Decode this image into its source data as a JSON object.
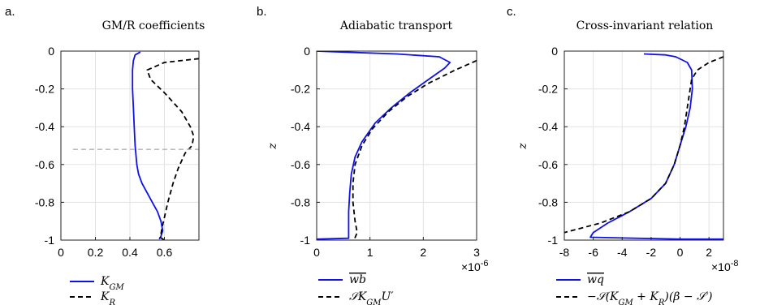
{
  "chart_data": [
    {
      "type": "line",
      "panel": "a.",
      "title": "GM/R coefficients",
      "xlabel": "",
      "ylabel": "",
      "xlim": [
        0,
        0.8
      ],
      "ylim": [
        -1,
        0
      ],
      "xticks": [
        "0",
        "0.2",
        "0.4",
        "0.6"
      ],
      "yticks": [
        "0",
        "-0.2",
        "-0.4",
        "-0.6",
        "-0.8",
        "-1"
      ],
      "grid": true,
      "legend": "below",
      "series": [
        {
          "name": "K_GM",
          "label_main": "K",
          "label_sub": "GM",
          "color": "#1010e8",
          "dash": "solid",
          "x": [
            0.46,
            0.43,
            0.42,
            0.415,
            0.415,
            0.42,
            0.425,
            0.43,
            0.44,
            0.45,
            0.47,
            0.5,
            0.53,
            0.56,
            0.58,
            0.59,
            0.58,
            0.57
          ],
          "y": [
            -0.005,
            -0.02,
            -0.05,
            -0.1,
            -0.2,
            -0.3,
            -0.4,
            -0.5,
            -0.6,
            -0.65,
            -0.7,
            -0.75,
            -0.8,
            -0.85,
            -0.9,
            -0.95,
            -0.98,
            -0.995
          ]
        },
        {
          "name": "K_R",
          "label_main": "K",
          "label_sub": "R",
          "color": "#000000",
          "dash": "dashed",
          "x": [
            0.8,
            0.6,
            0.5,
            0.52,
            0.6,
            0.7,
            0.75,
            0.77,
            0.76,
            0.72,
            0.68,
            0.65,
            0.62,
            0.6,
            0.585,
            0.58,
            0.575,
            0.6
          ],
          "y": [
            -0.04,
            -0.06,
            -0.1,
            -0.15,
            -0.22,
            -0.32,
            -0.4,
            -0.45,
            -0.5,
            -0.54,
            -0.62,
            -0.7,
            -0.8,
            -0.88,
            -0.94,
            -0.97,
            -0.985,
            -1.0
          ]
        },
        {
          "name": "",
          "color": "#bbbbbb",
          "dash": "dashed",
          "x": [
            0.07,
            0.8
          ],
          "y": [
            -0.52,
            -0.52
          ]
        }
      ]
    },
    {
      "type": "line",
      "panel": "b.",
      "title": "Adiabatic transport",
      "xlabel": "",
      "ylabel": "z",
      "xlim": [
        0,
        3
      ],
      "ylim": [
        -1,
        0
      ],
      "xticks": [
        "0",
        "1",
        "2",
        "3"
      ],
      "yticks": [
        "0",
        "-0.2",
        "-0.4",
        "-0.6",
        "-0.8",
        "-1"
      ],
      "multiplier": "×10",
      "multiplier_exp": "-6",
      "grid": true,
      "legend": "below",
      "series": [
        {
          "name": "wb",
          "label_main": "wb",
          "label_sub": "",
          "overline": true,
          "color": "#1010e8",
          "dash": "solid",
          "x": [
            0,
            0.5,
            1.5,
            2.3,
            2.5,
            2.4,
            2.1,
            1.75,
            1.4,
            1.1,
            0.85,
            0.72,
            0.65,
            0.62,
            0.6,
            0.6,
            0.6,
            0
          ],
          "y": [
            0,
            -0.005,
            -0.015,
            -0.03,
            -0.06,
            -0.09,
            -0.15,
            -0.22,
            -0.3,
            -0.38,
            -0.48,
            -0.56,
            -0.65,
            -0.75,
            -0.85,
            -0.95,
            -0.99,
            -0.995
          ]
        },
        {
          "name": "S K_GM U'",
          "label_main": "𝒮K",
          "label_sub": "GM",
          "label_tail": "U′",
          "color": "#000000",
          "dash": "dashed",
          "x": [
            3.0,
            2.6,
            2.1,
            1.7,
            1.35,
            1.05,
            0.85,
            0.72,
            0.68,
            0.68,
            0.72,
            0.76,
            0.7
          ],
          "y": [
            -0.05,
            -0.1,
            -0.17,
            -0.24,
            -0.32,
            -0.41,
            -0.5,
            -0.6,
            -0.7,
            -0.8,
            -0.9,
            -0.96,
            -1.0
          ]
        }
      ]
    },
    {
      "type": "line",
      "panel": "c.",
      "title": "Cross-invariant relation",
      "xlabel": "",
      "ylabel": "z",
      "xlim": [
        -8,
        3
      ],
      "ylim": [
        -1,
        0
      ],
      "xticks": [
        "-8",
        "-6",
        "-4",
        "-2",
        "0",
        "2"
      ],
      "yticks": [
        "0",
        "-0.2",
        "-0.4",
        "-0.6",
        "-0.8",
        "-1"
      ],
      "multiplier": "×10",
      "multiplier_exp": "-8",
      "grid": true,
      "legend": "below",
      "series": [
        {
          "name": "wq",
          "label_main": "wq",
          "label_sub": "",
          "overline": true,
          "color": "#1010e8",
          "dash": "solid",
          "x": [
            -2.5,
            -1.0,
            -0.3,
            0.5,
            0.8,
            0.85,
            0.7,
            0.4,
            0.0,
            -0.4,
            -1.0,
            -2.0,
            -3.5,
            -5.0,
            -6.0,
            -6.2,
            0,
            3
          ],
          "y": [
            -0.015,
            -0.02,
            -0.03,
            -0.06,
            -0.1,
            -0.2,
            -0.3,
            -0.4,
            -0.5,
            -0.6,
            -0.7,
            -0.78,
            -0.85,
            -0.91,
            -0.96,
            -0.985,
            -0.995,
            -0.995
          ]
        },
        {
          "name": "−S(K_GM + K_R)(β − S')",
          "label_main": "−𝒮(K",
          "label_sub": "GM",
          "label_tail": " + K",
          "label_sub2": "R",
          "label_tail2": ")(β − 𝒮′)",
          "color": "#000000",
          "dash": "dashed",
          "x": [
            3.0,
            2.0,
            1.2,
            0.8,
            0.6,
            0.3,
            0.0,
            -0.4,
            -1.0,
            -2.0,
            -3.5,
            -5.5,
            -8.0
          ],
          "y": [
            -0.03,
            -0.06,
            -0.1,
            -0.15,
            -0.25,
            -0.4,
            -0.5,
            -0.6,
            -0.7,
            -0.78,
            -0.85,
            -0.91,
            -0.96
          ]
        }
      ]
    }
  ]
}
